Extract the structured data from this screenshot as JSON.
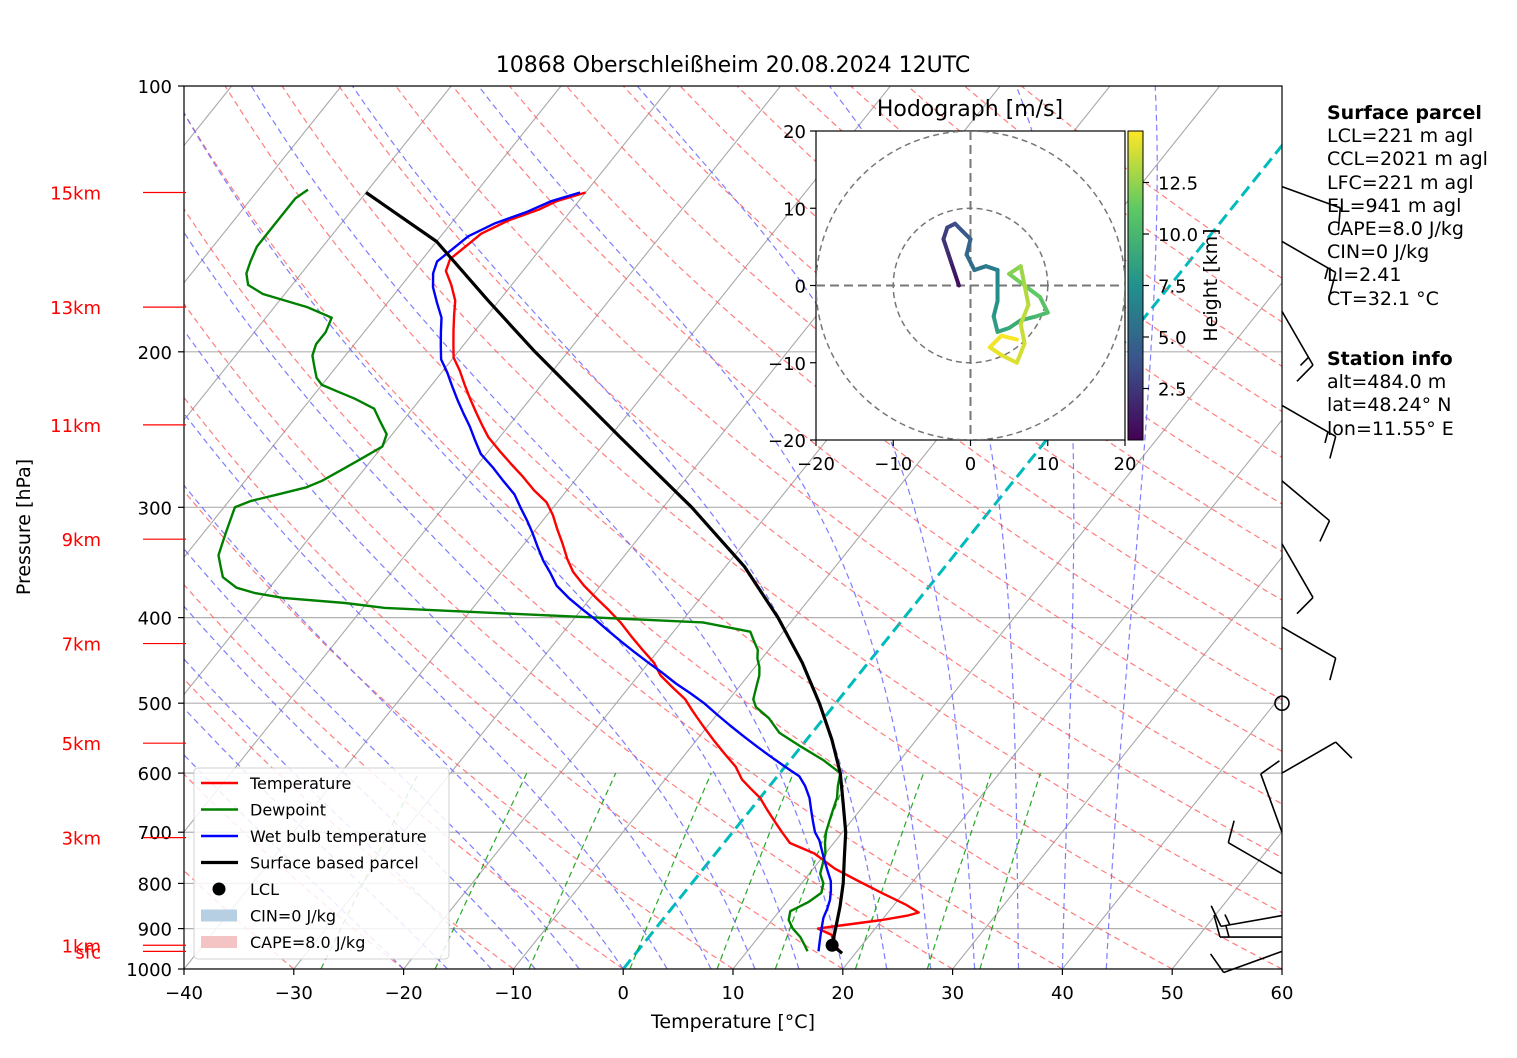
{
  "chart_data": {
    "type": "skew-t",
    "title": "10868 Oberschleißheim 20.08.2024 12UTC",
    "xlabel": "Temperature [°C]",
    "ylabel": "Pressure [hPa]",
    "x_range": [
      -40,
      60
    ],
    "pressure_range": [
      1000,
      100
    ],
    "x_ticks": [
      -40,
      -30,
      -20,
      -10,
      0,
      10,
      20,
      30,
      40,
      50,
      60
    ],
    "pressure_ticks": [
      1000,
      900,
      800,
      700,
      600,
      500,
      400,
      300,
      200,
      100
    ],
    "height_labels": [
      {
        "label": "sfc",
        "p": 955
      },
      {
        "label": "1km",
        "p": 940
      },
      {
        "label": "3km",
        "p": 710
      },
      {
        "label": "5km",
        "p": 555
      },
      {
        "label": "7km",
        "p": 428
      },
      {
        "label": "9km",
        "p": 326
      },
      {
        "label": "11km",
        "p": 242
      },
      {
        "label": "13km",
        "p": 178
      },
      {
        "label": "15km",
        "p": 132
      }
    ],
    "series": [
      {
        "name": "Temperature",
        "color": "#ff0000",
        "points": [
          [
            18.5,
            955
          ],
          [
            17.5,
            940
          ],
          [
            16.5,
            915
          ],
          [
            14.8,
            900
          ],
          [
            16,
            895
          ],
          [
            20,
            880
          ],
          [
            22,
            870
          ],
          [
            22.8,
            863
          ],
          [
            21,
            845
          ],
          [
            18,
            820
          ],
          [
            15,
            795
          ],
          [
            12,
            770
          ],
          [
            9,
            740
          ],
          [
            6,
            720
          ],
          [
            4.5,
            700
          ],
          [
            3,
            680
          ],
          [
            1.5,
            660
          ],
          [
            0,
            640
          ],
          [
            -1.5,
            625
          ],
          [
            -3,
            610
          ],
          [
            -4.5,
            590
          ],
          [
            -6.5,
            570
          ],
          [
            -8.5,
            550
          ],
          [
            -10.5,
            530
          ],
          [
            -12.5,
            510
          ],
          [
            -14,
            495
          ],
          [
            -16,
            480
          ],
          [
            -18,
            465
          ],
          [
            -19.5,
            450
          ],
          [
            -21.5,
            435
          ],
          [
            -23.5,
            420
          ],
          [
            -25.5,
            405
          ],
          [
            -27.5,
            392
          ],
          [
            -29.5,
            380
          ],
          [
            -31.5,
            368
          ],
          [
            -33.5,
            355
          ],
          [
            -35,
            343
          ],
          [
            -36.5,
            330
          ],
          [
            -38,
            318
          ],
          [
            -39.5,
            306
          ],
          [
            -41,
            296
          ],
          [
            -43,
            287
          ],
          [
            -45,
            277
          ],
          [
            -47,
            268
          ],
          [
            -49,
            259
          ],
          [
            -51,
            250
          ],
          [
            -52.5,
            242
          ],
          [
            -54,
            234
          ],
          [
            -55.5,
            226
          ],
          [
            -57,
            218
          ],
          [
            -58.5,
            210
          ],
          [
            -60,
            203
          ],
          [
            -61,
            196
          ],
          [
            -62,
            189
          ],
          [
            -63,
            182
          ],
          [
            -64,
            175
          ],
          [
            -65.5,
            168
          ],
          [
            -67,
            162
          ],
          [
            -67.5,
            157
          ],
          [
            -67,
            152
          ],
          [
            -66.5,
            147
          ],
          [
            -65,
            142
          ],
          [
            -63,
            138
          ],
          [
            -62,
            135
          ],
          [
            -60,
            132
          ]
        ]
      },
      {
        "name": "Dewpoint",
        "color": "#008000",
        "points": [
          [
            15.5,
            955
          ],
          [
            14.8,
            940
          ],
          [
            13.8,
            920
          ],
          [
            12.5,
            900
          ],
          [
            11.5,
            880
          ],
          [
            11,
            860
          ],
          [
            12,
            840
          ],
          [
            12.5,
            820
          ],
          [
            12,
            800
          ],
          [
            11,
            780
          ],
          [
            10.5,
            760
          ],
          [
            10,
            740
          ],
          [
            9.2,
            720
          ],
          [
            8.5,
            700
          ],
          [
            8,
            680
          ],
          [
            7.5,
            660
          ],
          [
            7,
            640
          ],
          [
            6.2,
            620
          ],
          [
            5.5,
            600
          ],
          [
            3,
            580
          ],
          [
            0,
            560
          ],
          [
            -3,
            540
          ],
          [
            -5,
            520
          ],
          [
            -7,
            505
          ],
          [
            -7.8,
            495
          ],
          [
            -8.2,
            485
          ],
          [
            -8.6,
            475
          ],
          [
            -9,
            465
          ],
          [
            -9.6,
            455
          ],
          [
            -10.4,
            445
          ],
          [
            -11,
            435
          ],
          [
            -12,
            425
          ],
          [
            -13,
            415
          ],
          [
            -18,
            405
          ],
          [
            -28,
            400
          ],
          [
            -38,
            395
          ],
          [
            -48,
            390
          ],
          [
            -52,
            385
          ],
          [
            -58,
            380
          ],
          [
            -61,
            375
          ],
          [
            -63,
            370
          ],
          [
            -65,
            360
          ],
          [
            -66,
            350
          ],
          [
            -67,
            340
          ],
          [
            -67.5,
            330
          ],
          [
            -68,
            320
          ],
          [
            -68.5,
            310
          ],
          [
            -69,
            300
          ],
          [
            -68,
            295
          ],
          [
            -66,
            290
          ],
          [
            -64,
            285
          ],
          [
            -63,
            280
          ],
          [
            -62,
            272
          ],
          [
            -61,
            264
          ],
          [
            -60,
            256
          ],
          [
            -60.5,
            248
          ],
          [
            -62,
            240
          ],
          [
            -63.5,
            232
          ],
          [
            -66,
            226
          ],
          [
            -68,
            222
          ],
          [
            -70,
            218
          ],
          [
            -71,
            214
          ],
          [
            -72,
            208
          ],
          [
            -73,
            202
          ],
          [
            -73.5,
            196
          ],
          [
            -73.5,
            190
          ],
          [
            -74,
            183
          ],
          [
            -77,
            178
          ],
          [
            -82,
            172
          ],
          [
            -84,
            168
          ],
          [
            -85,
            163
          ],
          [
            -85.5,
            158
          ],
          [
            -86,
            152
          ],
          [
            -86,
            146
          ],
          [
            -86,
            140
          ],
          [
            -86,
            134
          ],
          [
            -85.5,
            131
          ]
        ]
      },
      {
        "name": "Wet bulb temperature",
        "color": "#0000ff",
        "points": [
          [
            16.5,
            955
          ],
          [
            16,
            935
          ],
          [
            15.5,
            915
          ],
          [
            15,
            895
          ],
          [
            14.5,
            875
          ],
          [
            14.2,
            855
          ],
          [
            13.8,
            835
          ],
          [
            13.2,
            815
          ],
          [
            12.5,
            795
          ],
          [
            11.5,
            775
          ],
          [
            10.5,
            755
          ],
          [
            9.5,
            735
          ],
          [
            8.5,
            715
          ],
          [
            7.5,
            700
          ],
          [
            6.5,
            680
          ],
          [
            5.5,
            660
          ],
          [
            4.5,
            640
          ],
          [
            3.2,
            620
          ],
          [
            2,
            605
          ],
          [
            0,
            590
          ],
          [
            -2,
            575
          ],
          [
            -4,
            560
          ],
          [
            -6,
            545
          ],
          [
            -8,
            530
          ],
          [
            -10,
            515
          ],
          [
            -12,
            500
          ],
          [
            -14,
            487
          ],
          [
            -16,
            475
          ],
          [
            -18,
            462
          ],
          [
            -20,
            450
          ],
          [
            -22,
            438
          ],
          [
            -24,
            426
          ],
          [
            -26,
            414
          ],
          [
            -28,
            402
          ],
          [
            -30,
            391
          ],
          [
            -32,
            380
          ],
          [
            -34,
            368
          ],
          [
            -35.5,
            356
          ],
          [
            -37,
            345
          ],
          [
            -38.5,
            333
          ],
          [
            -40,
            321
          ],
          [
            -41.5,
            310
          ],
          [
            -43,
            300
          ],
          [
            -44.5,
            290
          ],
          [
            -46.5,
            280
          ],
          [
            -48.5,
            270
          ],
          [
            -50.5,
            261
          ],
          [
            -52,
            252
          ],
          [
            -53.5,
            243
          ],
          [
            -55,
            235
          ],
          [
            -56.5,
            227
          ],
          [
            -58,
            219
          ],
          [
            -59.5,
            211
          ],
          [
            -61,
            204
          ],
          [
            -62,
            197
          ],
          [
            -63,
            190
          ],
          [
            -64,
            183
          ],
          [
            -65.5,
            176
          ],
          [
            -67,
            169
          ],
          [
            -68,
            163
          ],
          [
            -68.5,
            158
          ],
          [
            -68,
            153
          ],
          [
            -67.5,
            148
          ],
          [
            -66,
            143
          ],
          [
            -64,
            139
          ],
          [
            -62.5,
            135
          ],
          [
            -60.5,
            132
          ]
        ]
      },
      {
        "name": "Surface based parcel",
        "color": "#000000",
        "points": [
          [
            18.8,
            960
          ],
          [
            17.3,
            940
          ],
          [
            16.4,
            900
          ],
          [
            15.2,
            850
          ],
          [
            13.8,
            800
          ],
          [
            12.1,
            750
          ],
          [
            10.3,
            700
          ],
          [
            8,
            650
          ],
          [
            5.5,
            600
          ],
          [
            2.3,
            550
          ],
          [
            -1.5,
            500
          ],
          [
            -6,
            450
          ],
          [
            -11.5,
            400
          ],
          [
            -18.3,
            350
          ],
          [
            -27.4,
            300
          ],
          [
            -39,
            250
          ],
          [
            -53,
            200
          ],
          [
            -61,
            175
          ],
          [
            -70,
            150
          ],
          [
            -80,
            132
          ]
        ]
      }
    ],
    "lcl_point": [
      17.3,
      940
    ],
    "lcl_label": "LCL",
    "cin_label": "CIN=0 J/kg",
    "cape_label": "CAPE=8.0 J/kg",
    "winds": [
      {
        "p": 955,
        "speed_kt": 10,
        "dir": 250
      },
      {
        "p": 920,
        "speed_kt": 15,
        "dir": 270
      },
      {
        "p": 870,
        "speed_kt": 15,
        "dir": 260
      },
      {
        "p": 780,
        "speed_kt": 10,
        "dir": 300
      },
      {
        "p": 700,
        "speed_kt": 10,
        "dir": 340
      },
      {
        "p": 600,
        "speed_kt": 10,
        "dir": 60
      },
      {
        "p": 500,
        "speed_kt": 0,
        "dir": 0
      },
      {
        "p": 410,
        "speed_kt": 10,
        "dir": 120
      },
      {
        "p": 330,
        "speed_kt": 10,
        "dir": 150
      },
      {
        "p": 280,
        "speed_kt": 10,
        "dir": 130
      },
      {
        "p": 230,
        "speed_kt": 15,
        "dir": 120
      },
      {
        "p": 180,
        "speed_kt": 15,
        "dir": 150
      },
      {
        "p": 150,
        "speed_kt": 15,
        "dir": 120
      },
      {
        "p": 130,
        "speed_kt": 10,
        "dir": 110
      }
    ],
    "hodograph": {
      "title": "Hodograph [m/s]",
      "range": [
        -20,
        20
      ],
      "ticks": [
        -20,
        -10,
        0,
        10,
        20
      ],
      "colorbar_label": "Height [km]",
      "colorbar_ticks": [
        2.5,
        5.0,
        7.5,
        10.0,
        12.5
      ],
      "height_range": [
        0,
        15
      ],
      "points": [
        [
          -1.5,
          0,
          0.5
        ],
        [
          -2,
          1.5,
          1
        ],
        [
          -2.5,
          3,
          1.5
        ],
        [
          -3,
          4.5,
          2
        ],
        [
          -3.5,
          6,
          2.5
        ],
        [
          -3,
          7.5,
          3
        ],
        [
          -2,
          8,
          3.5
        ],
        [
          -1,
          7,
          4
        ],
        [
          0,
          6,
          4.5
        ],
        [
          -0.5,
          4,
          5
        ],
        [
          0.5,
          2,
          5.5
        ],
        [
          2,
          2.5,
          6
        ],
        [
          3.5,
          2,
          6.5
        ],
        [
          3.5,
          0,
          7
        ],
        [
          3.5,
          -2,
          7.5
        ],
        [
          3,
          -4,
          8
        ],
        [
          3.5,
          -6,
          8.5
        ],
        [
          5,
          -5.5,
          9
        ],
        [
          6.5,
          -4.5,
          9.5
        ],
        [
          8.5,
          -4,
          10
        ],
        [
          10,
          -3.5,
          10.5
        ],
        [
          9,
          -1.5,
          11
        ],
        [
          7,
          0,
          11.5
        ],
        [
          5,
          1.5,
          12
        ],
        [
          6.5,
          2.5,
          12.5
        ],
        [
          7,
          0,
          13
        ],
        [
          7.5,
          -2.5,
          13.5
        ],
        [
          6.5,
          -5,
          13.5
        ],
        [
          7,
          -7.5,
          14
        ],
        [
          6,
          -10,
          14
        ],
        [
          4,
          -9,
          14.5
        ],
        [
          2.5,
          -8,
          14.5
        ],
        [
          4,
          -6.5,
          14.8
        ],
        [
          6,
          -7,
          15
        ]
      ]
    }
  },
  "surface_parcel": {
    "heading": "Surface parcel",
    "lines": [
      "LCL=221 m agl",
      "CCL=2021 m agl",
      "LFC=221 m agl",
      "EL=941 m agl",
      "CAPE=8.0 J/kg",
      "CIN=0 J/kg",
      "LI=2.41",
      "CT=32.1 °C"
    ]
  },
  "station_info": {
    "heading": "Station info",
    "lines": [
      "alt=484.0 m",
      "lat=48.24° N",
      "lon=11.55° E"
    ]
  },
  "colors": {
    "dry_adiabat": "#ff6666",
    "moist_adiabat": "#6666ff",
    "mixing_ratio": "#009900",
    "isotherm": "#999999",
    "zero_isotherm": "#00bbbb",
    "height_label": "#ff0000"
  }
}
